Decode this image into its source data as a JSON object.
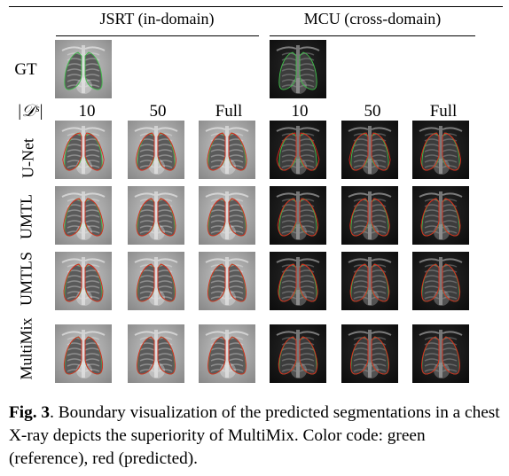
{
  "groups": {
    "jsrt": "JSRT (in-domain)",
    "mcu": "MCU (cross-domain)"
  },
  "rows": {
    "gt": "GT",
    "unet": "U-Net",
    "umtl": "UMTL",
    "umtls": "UMTLS",
    "multimix": "MultiMix"
  },
  "ds_label": "|𝒟ˢ|",
  "columns": [
    "10",
    "50",
    "Full",
    "10",
    "50",
    "Full"
  ],
  "caption": {
    "fig": "Fig. 3",
    "text": ". Boundary visualization of the predicted segmentations in a chest X-ray depicts the superiority of MultiMix. Color code: green (reference), red (predicted)."
  },
  "colors": {
    "reference": "#3fbf4a",
    "predicted": "#e0241c"
  }
}
